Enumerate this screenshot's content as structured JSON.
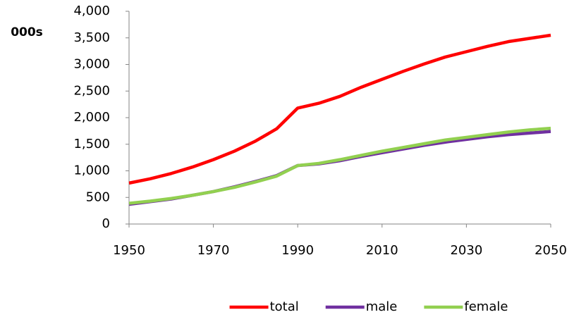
{
  "chart_data": {
    "type": "line",
    "y_label": "000s",
    "x": [
      1950,
      1955,
      1960,
      1965,
      1970,
      1975,
      1980,
      1985,
      1990,
      1995,
      2000,
      2005,
      2010,
      2015,
      2020,
      2025,
      2030,
      2035,
      2040,
      2045,
      2050
    ],
    "series": [
      {
        "name": "total",
        "color": "#ff0000",
        "values": [
          770,
          850,
          950,
          1070,
          1210,
          1370,
          1560,
          1790,
          2180,
          2270,
          2400,
          2570,
          2720,
          2870,
          3010,
          3140,
          3240,
          3340,
          3430,
          3490,
          3550
        ]
      },
      {
        "name": "male",
        "color": "#7030a0",
        "values": [
          370,
          420,
          470,
          540,
          610,
          700,
          800,
          910,
          1100,
          1130,
          1190,
          1270,
          1340,
          1410,
          1480,
          1540,
          1590,
          1640,
          1680,
          1710,
          1740
        ]
      },
      {
        "name": "female",
        "color": "#92d050",
        "values": [
          390,
          430,
          480,
          540,
          610,
          690,
          790,
          900,
          1100,
          1140,
          1210,
          1290,
          1370,
          1440,
          1510,
          1580,
          1630,
          1680,
          1730,
          1770,
          1800
        ]
      }
    ],
    "xlim": [
      1950,
      2050
    ],
    "xticks": [
      1950,
      1970,
      1990,
      2010,
      2030,
      2050
    ],
    "ylim": [
      0,
      4000
    ],
    "yticks": [
      0,
      500,
      {
        "value": 1000,
        "label": "1,000"
      },
      {
        "value": 1500,
        "label": "1,500"
      },
      {
        "value": 2000,
        "label": "2,000"
      },
      {
        "value": 2500,
        "label": "2,500"
      },
      {
        "value": 3000,
        "label": "3,000"
      },
      {
        "value": 3500,
        "label": "3,500"
      },
      {
        "value": 4000,
        "label": "4,000"
      }
    ],
    "legend": "bottom"
  }
}
